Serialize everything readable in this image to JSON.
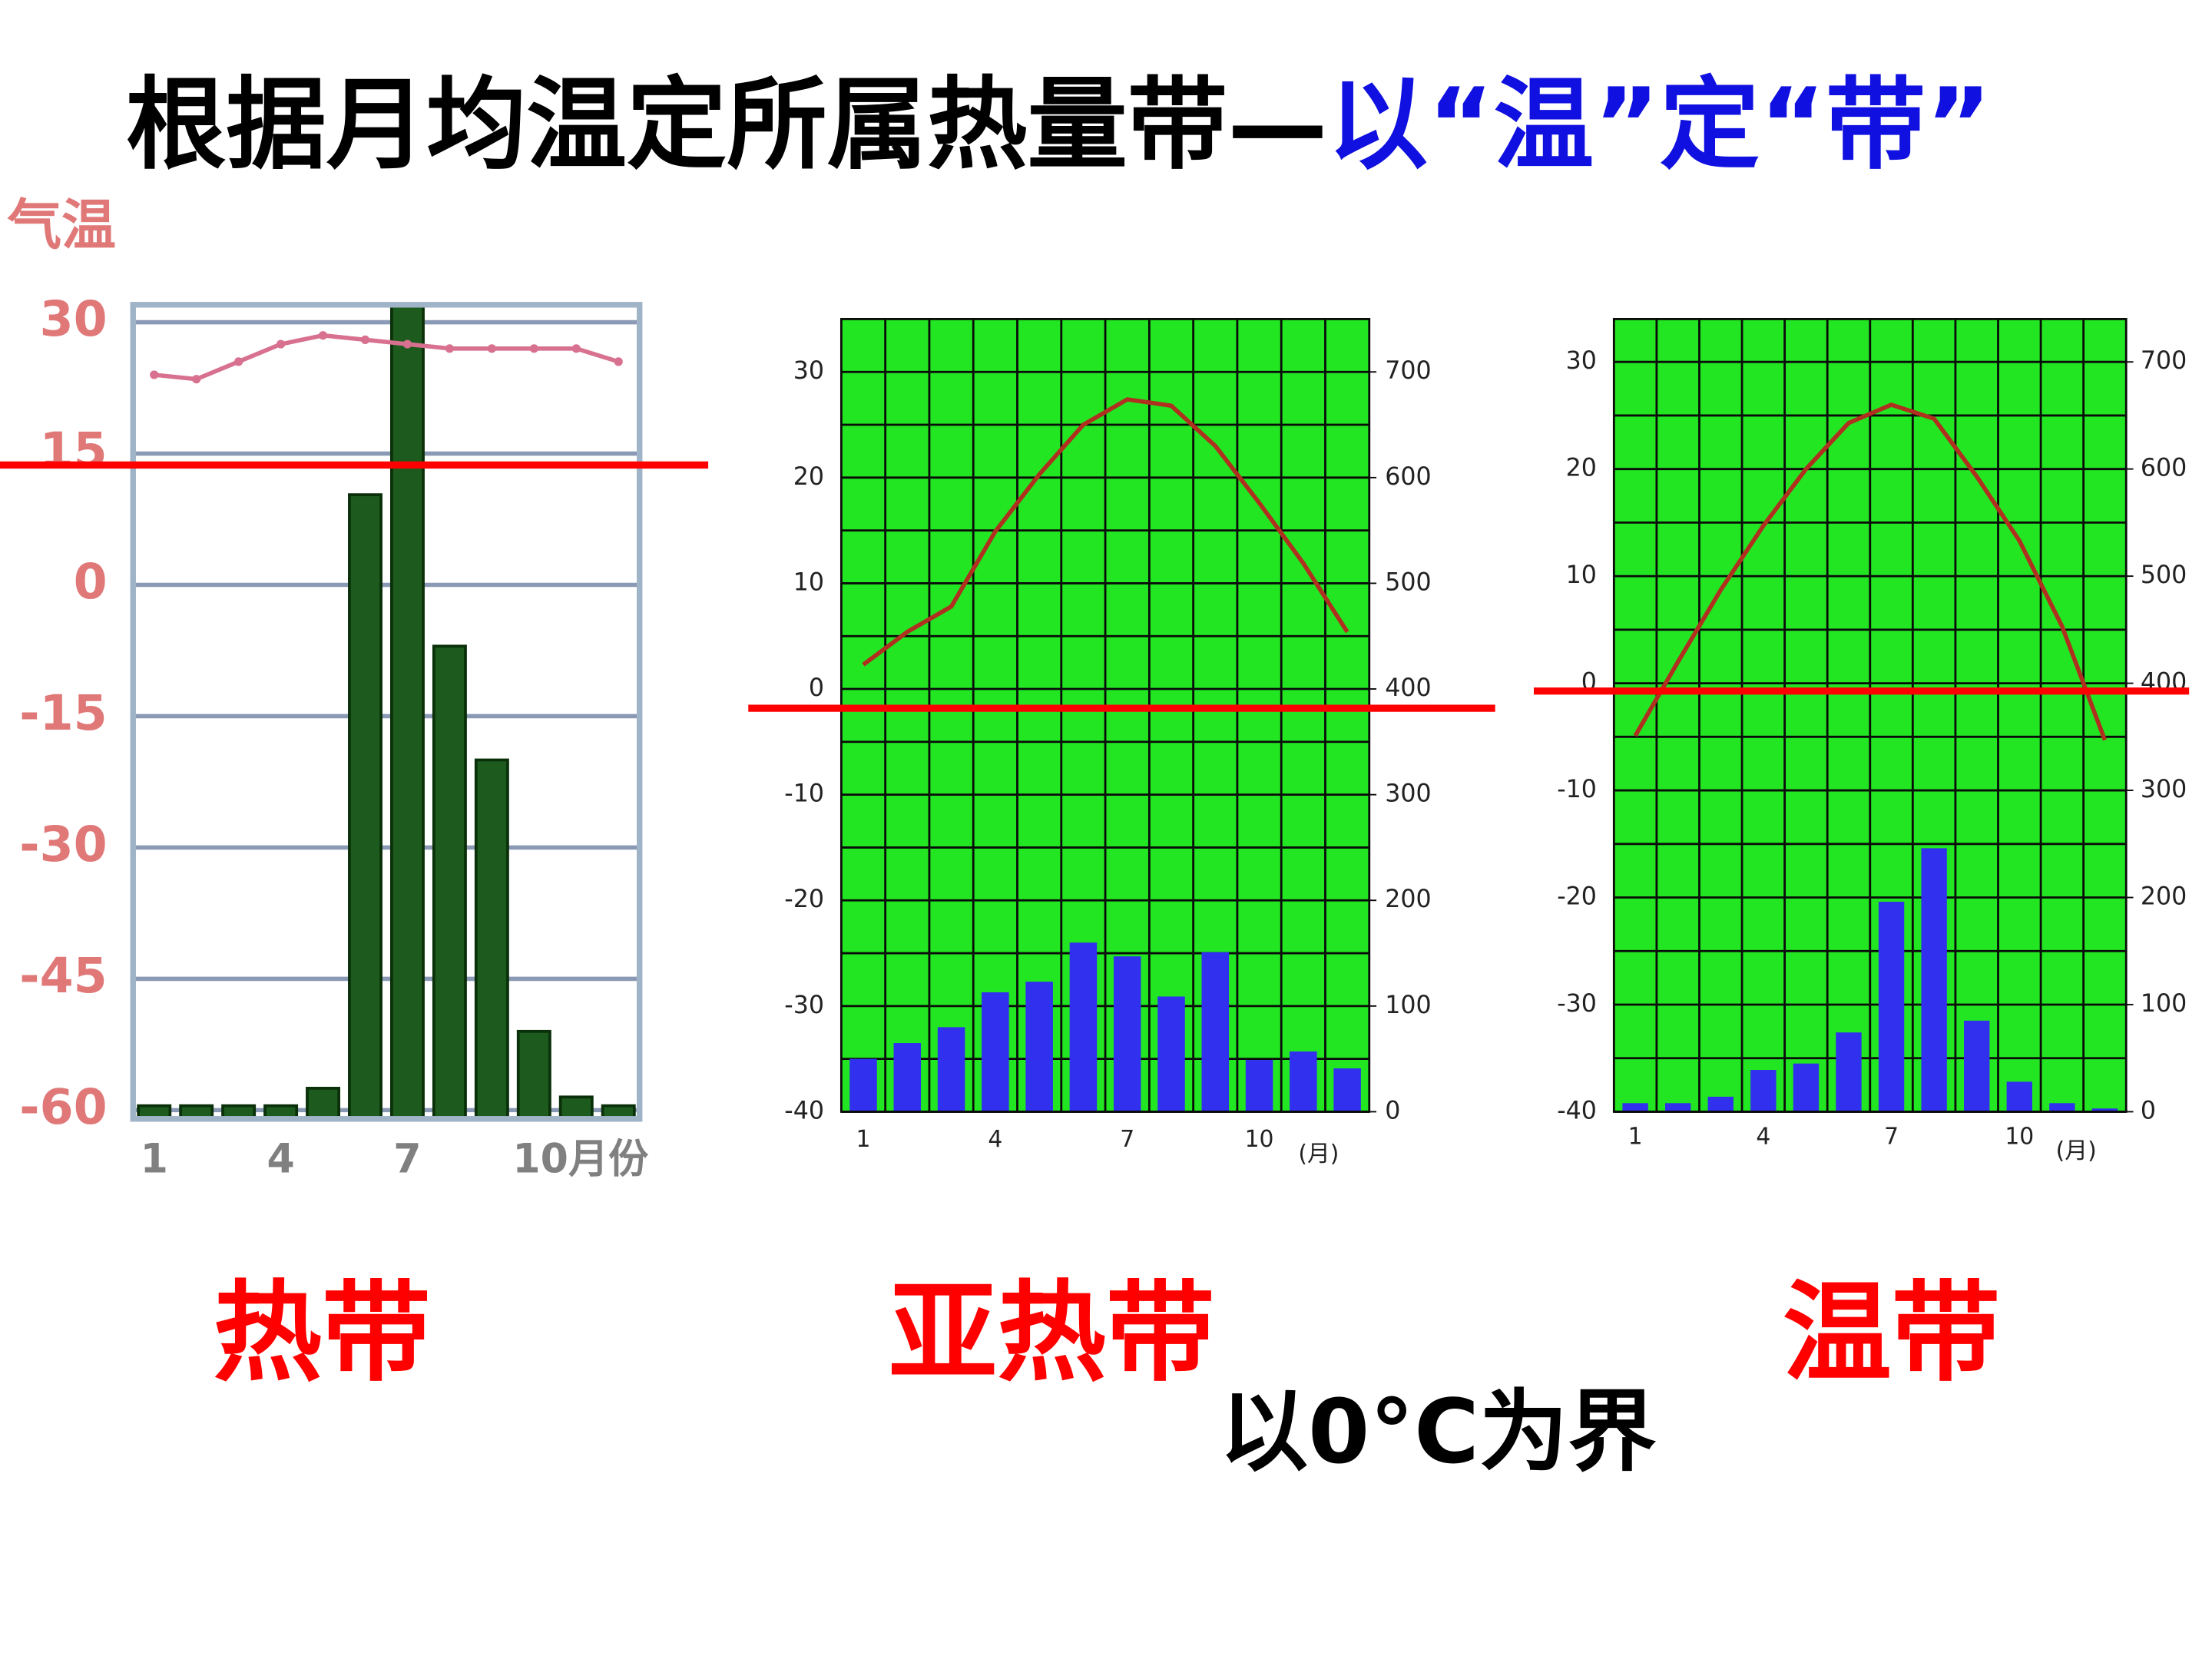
{
  "title_main": "根据月均温定所属热量带—",
  "title_highlight": "以“温”定“带”",
  "zone_labels": [
    "热带",
    "亚热带",
    "温带"
  ],
  "note": "以0°C为界",
  "chart_data": [
    {
      "type": "bar_line",
      "y_label": "气温",
      "categories": [
        "1",
        null,
        null,
        "4",
        null,
        null,
        "7",
        null,
        null,
        "10月份",
        null,
        null
      ],
      "ylim": [
        -61,
        32
      ],
      "yticks": [
        30,
        15,
        0,
        -15,
        -30,
        -45,
        -60
      ],
      "grid": true,
      "plot_background": "#ffffff",
      "grid_color": "#8a9ab4",
      "tick_color": "#e07878",
      "x_tick_color": "#808080",
      "series": [
        {
          "kind": "bar",
          "color": "#1d5a1d",
          "values": [
            -59.5,
            -59.5,
            -59.5,
            -59.5,
            -57.5,
            10.3,
            32,
            -7,
            -20,
            -51,
            -58.5,
            -59.5
          ]
        },
        {
          "kind": "line",
          "color": "#d87090",
          "markers": true,
          "values": [
            24,
            23.5,
            25.5,
            27.5,
            28.5,
            28,
            27.5,
            27,
            27,
            27,
            27,
            25.5
          ]
        }
      ]
    },
    {
      "type": "bar_line",
      "x_label": "(月)",
      "categories": [
        "1",
        null,
        null,
        "4",
        null,
        null,
        "7",
        null,
        null,
        "10",
        null,
        null
      ],
      "ylim": [
        -40,
        35
      ],
      "yticks": [
        30,
        20,
        10,
        0,
        -10,
        -20,
        -30,
        -40
      ],
      "minor_yticks": [
        25,
        15,
        5,
        -5,
        -15,
        -25,
        -35
      ],
      "y2lim": [
        0,
        750
      ],
      "y2ticks": [
        700,
        600,
        500,
        400,
        300,
        200,
        100,
        0
      ],
      "grid": true,
      "plot_background": "#22e622",
      "grid_color": "#0a0a0a",
      "tick_color": "#222222",
      "x_tick_color": "#222222",
      "series": [
        {
          "kind": "bar",
          "axis": "y2",
          "color": "#3030ee",
          "values": [
            50,
            65,
            80,
            113,
            123,
            160,
            147,
            109,
            151,
            49,
            57,
            41
          ]
        },
        {
          "kind": "line",
          "color": "#b03020",
          "values": [
            2.3,
            5.4,
            7.8,
            14.9,
            20.3,
            25,
            27.4,
            26.8,
            23,
            17.6,
            11.9,
            5.4
          ]
        }
      ]
    },
    {
      "type": "bar_line",
      "x_label": "(月)",
      "categories": [
        "1",
        null,
        null,
        "4",
        null,
        null,
        "7",
        null,
        null,
        "10",
        null,
        null
      ],
      "ylim": [
        -40,
        34
      ],
      "yticks": [
        30,
        20,
        10,
        0,
        -10,
        -20,
        -30,
        -40
      ],
      "minor_yticks": [
        25,
        15,
        5,
        -5,
        -15,
        -25,
        -35
      ],
      "y2lim": [
        0,
        740
      ],
      "y2ticks": [
        700,
        600,
        500,
        400,
        300,
        200,
        100,
        0
      ],
      "grid": true,
      "plot_background": "#22e622",
      "grid_color": "#0a0a0a",
      "tick_color": "#222222",
      "x_tick_color": "#222222",
      "series": [
        {
          "kind": "bar",
          "axis": "y2",
          "color": "#3030ee",
          "values": [
            8,
            8,
            14,
            39,
            45,
            74,
            196,
            246,
            85,
            28,
            8,
            3
          ]
        },
        {
          "kind": "line",
          "color": "#b03020",
          "values": [
            -4.9,
            2,
            8.7,
            14.7,
            20,
            24.3,
            26,
            24.7,
            19.3,
            13.3,
            5.3,
            -5.3
          ]
        }
      ]
    }
  ]
}
